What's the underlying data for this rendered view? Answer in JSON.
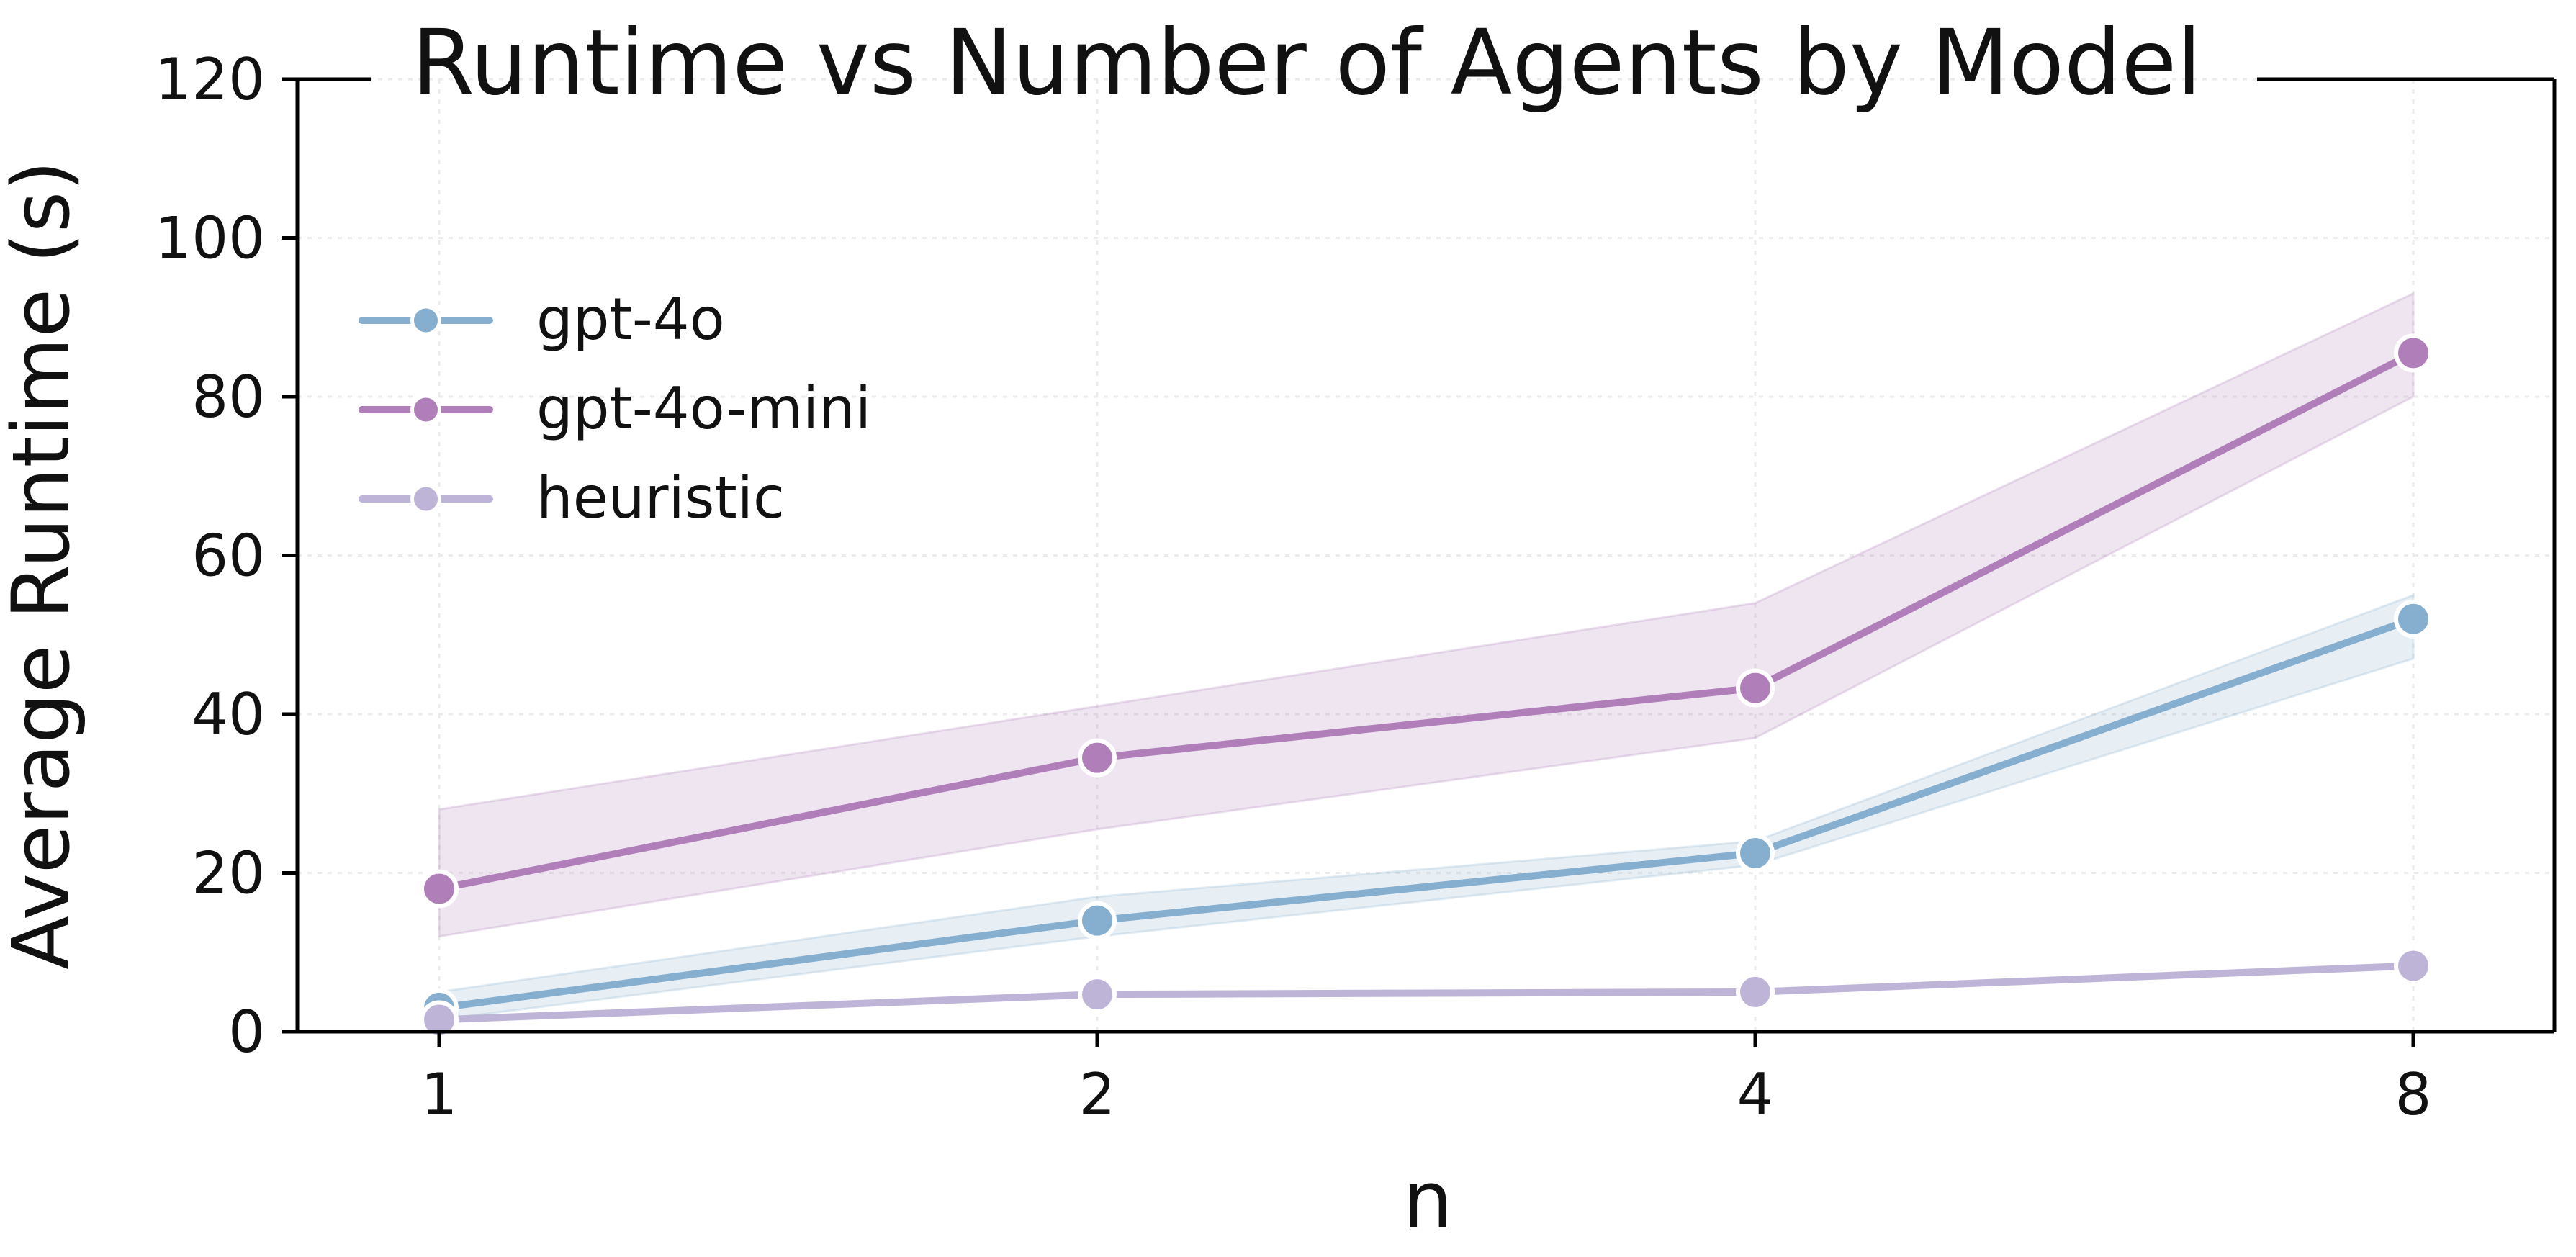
{
  "chart_data": {
    "type": "line",
    "title": "Runtime vs Number of Agents by Model",
    "xlabel": "n",
    "ylabel": "Average Runtime (s)",
    "x": [
      1,
      2,
      4,
      8
    ],
    "x_scale": "log2",
    "xticks": [
      "1",
      "2",
      "4",
      "8"
    ],
    "yticks": [
      "0",
      "20",
      "40",
      "60",
      "80",
      "100",
      "120"
    ],
    "ylim": [
      0,
      120
    ],
    "grid": true,
    "legend_position": "upper-left",
    "series": [
      {
        "name": "gpt-4o",
        "color": "#86aecf",
        "values": [
          3,
          14,
          22.5,
          52
        ],
        "ci_low": [
          1.5,
          12,
          21,
          47
        ],
        "ci_high": [
          5,
          17,
          24,
          55
        ]
      },
      {
        "name": "gpt-4o-mini",
        "color": "#b07fba",
        "values": [
          18,
          34.5,
          43.3,
          85.5
        ],
        "ci_low": [
          12,
          25.5,
          37,
          80
        ],
        "ci_high": [
          28,
          41,
          54,
          93
        ]
      },
      {
        "name": "heuristic",
        "color": "#bdb4d8",
        "values": [
          1.5,
          4.7,
          5,
          8.3
        ],
        "ci_low": [
          1.3,
          4.5,
          4.8,
          8
        ],
        "ci_high": [
          1.7,
          4.9,
          5.2,
          8.6
        ]
      }
    ]
  }
}
